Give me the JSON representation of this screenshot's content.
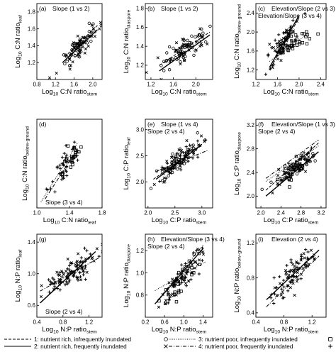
{
  "legend": [
    {
      "symbol": "circle",
      "dash": "dash",
      "text": "1: nutrient rich, infrequently inundated"
    },
    {
      "symbol": "cross",
      "dash": "solid",
      "text": "2: nutrient rich, frequently inundated"
    },
    {
      "symbol": "square",
      "dash": "dot",
      "text": "3: nutrient poor, infrequently inundated"
    },
    {
      "symbol": "plus",
      "dash": "dashdot",
      "text": "4: nutrient poor, frequently inundated"
    }
  ],
  "chart_data": [
    {
      "panel": "(a)",
      "type": "scatter",
      "annotation": [
        "Slope (1 vs 2)"
      ],
      "ylabel": {
        "base": "Log",
        "sub1": "10",
        "main": " C:N ratio",
        "sub2": "leaf"
      },
      "xlabel": {
        "base": "Log",
        "sub1": "10",
        "main": " C:N ratio",
        "sub2": "stem"
      },
      "xlim": [
        0.8,
        2.2
      ],
      "ylim": [
        1.0,
        1.9
      ],
      "xticks": [
        0.8,
        1.2,
        1.6,
        2.0
      ],
      "xtick_labels": [
        "0.8",
        "1.2",
        "1.6",
        "2.0"
      ],
      "yticks": [
        1.2,
        1.4,
        1.6,
        1.8
      ],
      "ytick_labels": [
        "1.2",
        "1.4",
        "1.6",
        "1.8"
      ],
      "lines": [
        {
          "group": 1,
          "x": [
            1.4,
            2.1
          ],
          "y": [
            1.27,
            1.64
          ]
        },
        {
          "group": 2,
          "x": [
            1.35,
            2.1
          ],
          "y": [
            1.2,
            1.59
          ]
        }
      ],
      "clouds": [
        {
          "cx": 1.75,
          "cy": 1.42,
          "sx": 0.2,
          "sy": 0.1,
          "slope": 0.55,
          "n": 95,
          "groups": [
            1,
            2
          ]
        }
      ]
    },
    {
      "panel": "(b)",
      "type": "scatter",
      "annotation": [
        "Slope (1 vs 2)"
      ],
      "ylabel": {
        "base": "Log",
        "sub1": "10",
        "main": " C:N ratio",
        "sub2": "diaspore"
      },
      "xlabel": {
        "base": "Log",
        "sub1": "10",
        "main": " C:N ratio",
        "sub2": "stem"
      },
      "xlim": [
        1.1,
        2.3
      ],
      "ylim": [
        1.05,
        1.85
      ],
      "xticks": [
        1.2,
        1.6,
        2.0
      ],
      "xtick_labels": [
        "1.2",
        "1.6",
        "2.0"
      ],
      "yticks": [
        1.2,
        1.4,
        1.6,
        1.8
      ],
      "ytick_labels": [
        "1.2",
        "1.4",
        "1.6",
        "1.8"
      ],
      "lines": [
        {
          "group": 1,
          "x": [
            1.35,
            2.25
          ],
          "y": [
            1.2,
            1.55
          ]
        },
        {
          "group": 2,
          "x": [
            1.35,
            2.25
          ],
          "y": [
            1.14,
            1.52
          ]
        }
      ],
      "clouds": [
        {
          "cx": 1.8,
          "cy": 1.38,
          "sx": 0.22,
          "sy": 0.1,
          "slope": 0.38,
          "n": 95,
          "groups": [
            1,
            2
          ]
        }
      ]
    },
    {
      "panel": "(c)",
      "type": "scatter",
      "annotation": [
        "Elevation/Slope (2 vs 3)",
        "Elevation/Slope (3 vs 4)"
      ],
      "ylabel": {
        "base": "Log",
        "sub1": "10",
        "main": " C:N ratio",
        "sub2": "below-ground"
      },
      "xlabel": {
        "base": "Log",
        "sub1": "10",
        "main": " C:N ratio",
        "sub2": "stem"
      },
      "xlim": [
        1.2,
        2.5
      ],
      "ylim": [
        1.0,
        2.6
      ],
      "xticks": [
        1.2,
        1.6,
        2.0,
        2.4
      ],
      "xtick_labels": [
        "1.2",
        "1.6",
        "2.0",
        "2.4"
      ],
      "yticks": [
        1.2,
        1.6,
        2.0,
        2.4
      ],
      "ytick_labels": [
        "1.2",
        "1.6",
        "2.0",
        "2.4"
      ],
      "lines": [
        {
          "group": 2,
          "x": [
            1.45,
            2.0
          ],
          "y": [
            1.25,
            2.35
          ]
        },
        {
          "group": 3,
          "x": [
            1.45,
            2.15
          ],
          "y": [
            1.38,
            1.95
          ]
        },
        {
          "group": 4,
          "x": [
            1.45,
            2.0
          ],
          "y": [
            1.2,
            2.3
          ]
        }
      ],
      "clouds": [
        {
          "cx": 1.72,
          "cy": 1.75,
          "sx": 0.14,
          "sy": 0.25,
          "slope": 1.5,
          "n": 85,
          "groups": [
            2,
            4
          ]
        },
        {
          "cx": 1.95,
          "cy": 1.78,
          "sx": 0.18,
          "sy": 0.15,
          "slope": 0.6,
          "n": 30,
          "groups": [
            3
          ]
        }
      ]
    },
    {
      "panel": "(d)",
      "type": "scatter",
      "annotation": [
        "Slope (3 vs 4)"
      ],
      "ylabel": {
        "base": "Log",
        "sub1": "10",
        "main": " C:N ratio",
        "sub2": "below-ground"
      },
      "xlabel": {
        "base": "Log",
        "sub1": "10",
        "main": " C:N ratio",
        "sub2": "leaf"
      },
      "xlim": [
        1.0,
        1.8
      ],
      "ylim": [
        1.0,
        2.5
      ],
      "xticks": [
        1.0,
        1.4,
        1.8
      ],
      "xtick_labels": [
        "1.0",
        "1.4",
        "1.8"
      ],
      "yticks": [],
      "ytick_labels": [],
      "lines": [
        {
          "group": 3,
          "x": [
            1.05,
            1.5
          ],
          "y": [
            1.1,
            2.1
          ]
        },
        {
          "group": 4,
          "x": [
            1.1,
            1.5
          ],
          "y": [
            1.15,
            2.0
          ]
        }
      ],
      "clouds": [
        {
          "cx": 1.35,
          "cy": 1.72,
          "sx": 0.07,
          "sy": 0.22,
          "slope": 1.8,
          "n": 45,
          "groups": [
            4
          ]
        },
        {
          "cx": 1.45,
          "cy": 1.9,
          "sx": 0.06,
          "sy": 0.15,
          "slope": 1.2,
          "n": 20,
          "groups": [
            3
          ]
        }
      ]
    },
    {
      "panel": "(e)",
      "type": "scatter",
      "annotation": [
        "Slope (1 vs 4)",
        "Slope (2 vs 4)"
      ],
      "ylabel": {
        "base": "Log",
        "sub1": "10",
        "main": " C:P ratio",
        "sub2": "leaf"
      },
      "xlabel": {
        "base": "Log",
        "sub1": "10",
        "main": " C:P ratio",
        "sub2": "stem"
      },
      "xlim": [
        1.95,
        3.2
      ],
      "ylim": [
        1.5,
        3.2
      ],
      "xticks": [
        2.0,
        2.5,
        3.0
      ],
      "xtick_labels": [
        "2.0",
        "2.5",
        "3.0"
      ],
      "yticks": [
        2.0,
        2.5,
        3.0
      ],
      "ytick_labels": [
        "2.0",
        "2.5",
        "3.0"
      ],
      "lines": [
        {
          "group": 1,
          "x": [
            2.1,
            3.0
          ],
          "y": [
            2.05,
            2.7
          ]
        },
        {
          "group": 2,
          "x": [
            2.15,
            3.0
          ],
          "y": [
            2.05,
            2.72
          ]
        },
        {
          "group": 4,
          "x": [
            2.15,
            3.1
          ],
          "y": [
            2.2,
            2.6
          ]
        }
      ],
      "clouds": [
        {
          "cx": 2.55,
          "cy": 2.4,
          "sx": 0.2,
          "sy": 0.17,
          "slope": 0.75,
          "n": 130,
          "groups": [
            1,
            2,
            4
          ]
        }
      ]
    },
    {
      "panel": "(f)",
      "type": "scatter",
      "annotation": [
        "Elevation/Slope (1 vs 3)",
        "Slope (2 vs 4)"
      ],
      "ylabel": {
        "base": "Log",
        "sub1": "10",
        "main": " C:P ratio",
        "sub2": "diaspore"
      },
      "xlabel": {
        "base": "Log",
        "sub1": "10",
        "main": " C:P ratio",
        "sub2": "stem"
      },
      "xlim": [
        1.9,
        3.3
      ],
      "ylim": [
        1.8,
        3.3
      ],
      "xticks": [
        2.0,
        2.4,
        2.8,
        3.2
      ],
      "xtick_labels": [
        "2.0",
        "2.4",
        "2.8",
        "3.2"
      ],
      "yticks": [
        2.0,
        2.4,
        2.8,
        3.2
      ],
      "ytick_labels": [
        "2.0",
        "2.4",
        "2.8",
        "3.2"
      ],
      "lines": [
        {
          "group": 1,
          "x": [
            2.1,
            3.15
          ],
          "y": [
            2.1,
            2.9
          ]
        },
        {
          "group": 2,
          "x": [
            2.1,
            3.15
          ],
          "y": [
            2.0,
            2.75
          ]
        },
        {
          "group": 3,
          "x": [
            2.1,
            3.15
          ],
          "y": [
            2.25,
            2.85
          ]
        },
        {
          "group": 4,
          "x": [
            2.1,
            3.15
          ],
          "y": [
            2.3,
            2.95
          ]
        }
      ],
      "clouds": [
        {
          "cx": 2.65,
          "cy": 2.45,
          "sx": 0.2,
          "sy": 0.15,
          "slope": 0.7,
          "n": 120,
          "groups": [
            1,
            2,
            3,
            4
          ]
        }
      ]
    },
    {
      "panel": "(g)",
      "type": "scatter",
      "annotation": [
        "Slope (2 vs 4)"
      ],
      "ylabel": {
        "base": "Log",
        "sub1": "10",
        "main": " N:P ratio",
        "sub2": "leaf"
      },
      "xlabel": {
        "base": "Log",
        "sub1": "10",
        "main": " N:P ratio",
        "sub2": "stem"
      },
      "xlim": [
        0.4,
        1.4
      ],
      "ylim": [
        0.45,
        1.5
      ],
      "xticks": [
        0.4,
        0.8,
        1.2
      ],
      "xtick_labels": [
        "0.4",
        "0.8",
        "1.2"
      ],
      "yticks": [
        0.6,
        1.0,
        1.4
      ],
      "ytick_labels": [
        "0.6",
        "1.0",
        "1.4"
      ],
      "lines": [
        {
          "group": 2,
          "x": [
            0.45,
            1.3
          ],
          "y": [
            0.63,
            1.28
          ]
        },
        {
          "group": 4,
          "x": [
            0.45,
            1.35
          ],
          "y": [
            0.78,
            1.2
          ]
        }
      ],
      "clouds": [
        {
          "cx": 0.95,
          "cy": 1.02,
          "sx": 0.2,
          "sy": 0.15,
          "slope": 0.6,
          "n": 110,
          "groups": [
            2,
            4
          ]
        }
      ]
    },
    {
      "panel": "(h)",
      "type": "scatter",
      "annotation": [
        "Elevation/Slope (3 vs 4)",
        "Slope (2 vs 4)"
      ],
      "ylabel": {
        "base": "Log",
        "sub1": "10",
        "main": " N:P ratio",
        "sub2": "diaspore"
      },
      "xlabel": {
        "base": "Log",
        "sub1": "10",
        "main": " N:P ratio",
        "sub2": "stem"
      },
      "xlim": [
        0.2,
        1.6
      ],
      "ylim": [
        0.6,
        1.35
      ],
      "xticks": [
        0.2,
        0.6,
        1.0,
        1.4
      ],
      "xtick_labels": [
        "0.2",
        "0.6",
        "1.0",
        "1.4"
      ],
      "yticks": [
        0.8,
        1.0,
        1.2
      ],
      "ytick_labels": [
        "0.8",
        "1.0",
        "1.2"
      ],
      "lines": [
        {
          "group": 2,
          "x": [
            0.4,
            1.4
          ],
          "y": [
            0.72,
            1.22
          ]
        },
        {
          "group": 3,
          "x": [
            0.4,
            1.45
          ],
          "y": [
            0.84,
            1.1
          ]
        },
        {
          "group": 4,
          "x": [
            0.45,
            1.4
          ],
          "y": [
            0.75,
            1.25
          ]
        }
      ],
      "clouds": [
        {
          "cx": 0.95,
          "cy": 0.95,
          "sx": 0.22,
          "sy": 0.1,
          "slope": 0.5,
          "n": 110,
          "groups": [
            2,
            3,
            4
          ]
        }
      ]
    },
    {
      "panel": "(i)",
      "type": "scatter",
      "annotation": [
        "Elevation (2 vs 4)"
      ],
      "ylabel": {
        "base": "Log",
        "sub1": "10",
        "main": " N:P ratio",
        "sub2": "below-ground"
      },
      "xlabel": {
        "base": "Log",
        "sub1": "10",
        "main": " N:P ratio",
        "sub2": "stem"
      },
      "xlim": [
        0.4,
        1.4
      ],
      "ylim": [
        0.35,
        1.3
      ],
      "xticks": [
        0.4,
        0.8,
        1.2
      ],
      "xtick_labels": [
        "0.4",
        "0.8",
        "1.2"
      ],
      "yticks": [
        0.4,
        0.8,
        1.2
      ],
      "ytick_labels": [
        "0.4",
        "0.8",
        "1.2"
      ],
      "lines": [
        {
          "group": 2,
          "x": [
            0.55,
            1.3
          ],
          "y": [
            0.55,
            1.12
          ]
        },
        {
          "group": 4,
          "x": [
            0.55,
            1.3
          ],
          "y": [
            0.47,
            1.05
          ]
        }
      ],
      "clouds": [
        {
          "cx": 0.95,
          "cy": 0.85,
          "sx": 0.15,
          "sy": 0.15,
          "slope": 0.8,
          "n": 90,
          "groups": [
            2,
            4
          ]
        }
      ]
    }
  ]
}
